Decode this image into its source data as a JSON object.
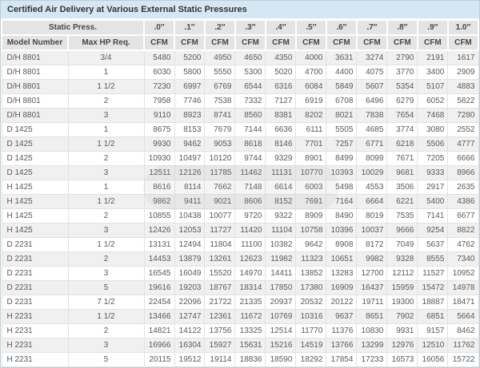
{
  "title": "Certified Air Delivery at Various External Static Pressures",
  "header": {
    "static_press_label": "Static Press.",
    "model_number_label": "Model Number",
    "max_hp_label": "Max HP Req.",
    "unit_label": "CFM",
    "pressure_labels": [
      ".0″",
      ".1″",
      ".2″",
      ".3″",
      ".4″",
      ".5″",
      ".6″",
      ".7″",
      ".8″",
      ".9″",
      "1.0″"
    ]
  },
  "colors": {
    "title_bar_bg": "#d5e7f3",
    "header_bg": "#e4e4e4",
    "row_alt_bg": "#f0f0f0",
    "row_bg": "#ffffff",
    "grid": "#e2e2e2",
    "frame": "#b7cfde",
    "text": "#595959"
  },
  "chart_data": {
    "type": "table",
    "title": "Certified Air Delivery at Various External Static Pressures",
    "columns": [
      "Model Number",
      "Max HP Req.",
      ".0″ CFM",
      ".1″ CFM",
      ".2″ CFM",
      ".3″ CFM",
      ".4″ CFM",
      ".5″ CFM",
      ".6″ CFM",
      ".7″ CFM",
      ".8″ CFM",
      ".9″ CFM",
      "1.0″ CFM"
    ],
    "rows": [
      {
        "model": "D/H 8801",
        "max_hp": "3/4",
        "cfm": [
          5480,
          5200,
          4950,
          4650,
          4350,
          4000,
          3631,
          3274,
          2790,
          2191,
          1617
        ]
      },
      {
        "model": "D/H 8801",
        "max_hp": "1",
        "cfm": [
          6030,
          5800,
          5550,
          5300,
          5020,
          4700,
          4400,
          4075,
          3770,
          3400,
          2909
        ]
      },
      {
        "model": "D/H 8801",
        "max_hp": "1 1/2",
        "cfm": [
          7230,
          6997,
          6769,
          6544,
          6316,
          6084,
          5849,
          5607,
          5354,
          5107,
          4883
        ]
      },
      {
        "model": "D/H 8801",
        "max_hp": "2",
        "cfm": [
          7958,
          7746,
          7538,
          7332,
          7127,
          6919,
          6708,
          6496,
          6279,
          6052,
          5822
        ]
      },
      {
        "model": "D/H 8801",
        "max_hp": "3",
        "cfm": [
          9110,
          8923,
          8741,
          8560,
          8381,
          8202,
          8021,
          7838,
          7654,
          7468,
          7280
        ]
      },
      {
        "model": "D 1425",
        "max_hp": "1",
        "cfm": [
          8675,
          8153,
          7679,
          7144,
          6636,
          6111,
          5505,
          4685,
          3774,
          3080,
          2552
        ]
      },
      {
        "model": "D 1425",
        "max_hp": "1 1/2",
        "cfm": [
          9930,
          9462,
          9053,
          8618,
          8146,
          7701,
          7257,
          6771,
          6218,
          5506,
          4777
        ]
      },
      {
        "model": "D 1425",
        "max_hp": "2",
        "cfm": [
          10930,
          10497,
          10120,
          9744,
          9329,
          8901,
          8499,
          8099,
          7671,
          7205,
          6666
        ]
      },
      {
        "model": "D 1425",
        "max_hp": "3",
        "cfm": [
          12511,
          12126,
          11785,
          11462,
          11131,
          10770,
          10393,
          10029,
          9681,
          9333,
          8966
        ]
      },
      {
        "model": "H 1425",
        "max_hp": "1",
        "cfm": [
          8616,
          8114,
          7662,
          7148,
          6614,
          6003,
          5498,
          4553,
          3506,
          2917,
          2635
        ]
      },
      {
        "model": "H 1425",
        "max_hp": "1 1/2",
        "cfm": [
          9862,
          9411,
          9021,
          8606,
          8152,
          7691,
          7164,
          6664,
          6221,
          5400,
          4386
        ]
      },
      {
        "model": "H 1425",
        "max_hp": "2",
        "cfm": [
          10855,
          10438,
          10077,
          9720,
          9322,
          8909,
          8490,
          8019,
          7535,
          7141,
          6677
        ]
      },
      {
        "model": "H 1425",
        "max_hp": "3",
        "cfm": [
          12426,
          12053,
          11727,
          11420,
          11104,
          10758,
          10396,
          10037,
          9666,
          9254,
          8822
        ]
      },
      {
        "model": "D 2231",
        "max_hp": "1 1/2",
        "cfm": [
          13131,
          12494,
          11804,
          11100,
          10382,
          9642,
          8908,
          8172,
          7049,
          5637,
          4762
        ]
      },
      {
        "model": "D 2231",
        "max_hp": "2",
        "cfm": [
          14453,
          13879,
          13261,
          12623,
          11982,
          11323,
          10651,
          9982,
          9328,
          8555,
          7340
        ]
      },
      {
        "model": "D 2231",
        "max_hp": "3",
        "cfm": [
          16545,
          16049,
          15520,
          14970,
          14411,
          13852,
          13283,
          12700,
          12112,
          11527,
          10952
        ]
      },
      {
        "model": "D 2231",
        "max_hp": "5",
        "cfm": [
          19616,
          19203,
          18767,
          18314,
          17850,
          17380,
          16909,
          16437,
          15959,
          15472,
          14978
        ]
      },
      {
        "model": "D 2231",
        "max_hp": "7 1/2",
        "cfm": [
          22454,
          22096,
          21722,
          21335,
          20937,
          20532,
          20122,
          19711,
          19300,
          18887,
          18471
        ]
      },
      {
        "model": "H 2231",
        "max_hp": "1 1/2",
        "cfm": [
          13466,
          12747,
          12361,
          11672,
          10769,
          10316,
          9637,
          8651,
          7902,
          6851,
          5664
        ]
      },
      {
        "model": "H 2231",
        "max_hp": "2",
        "cfm": [
          14821,
          14122,
          13756,
          13325,
          12514,
          11770,
          11376,
          10830,
          9931,
          9157,
          8462
        ]
      },
      {
        "model": "H 2231",
        "max_hp": "3",
        "cfm": [
          16966,
          16304,
          15927,
          15631,
          15216,
          14519,
          13766,
          13299,
          12976,
          12510,
          11762
        ]
      },
      {
        "model": "H 2231",
        "max_hp": "5",
        "cfm": [
          20115,
          19512,
          19114,
          18836,
          18590,
          18292,
          17854,
          17233,
          16573,
          16056,
          15722
        ]
      }
    ]
  }
}
